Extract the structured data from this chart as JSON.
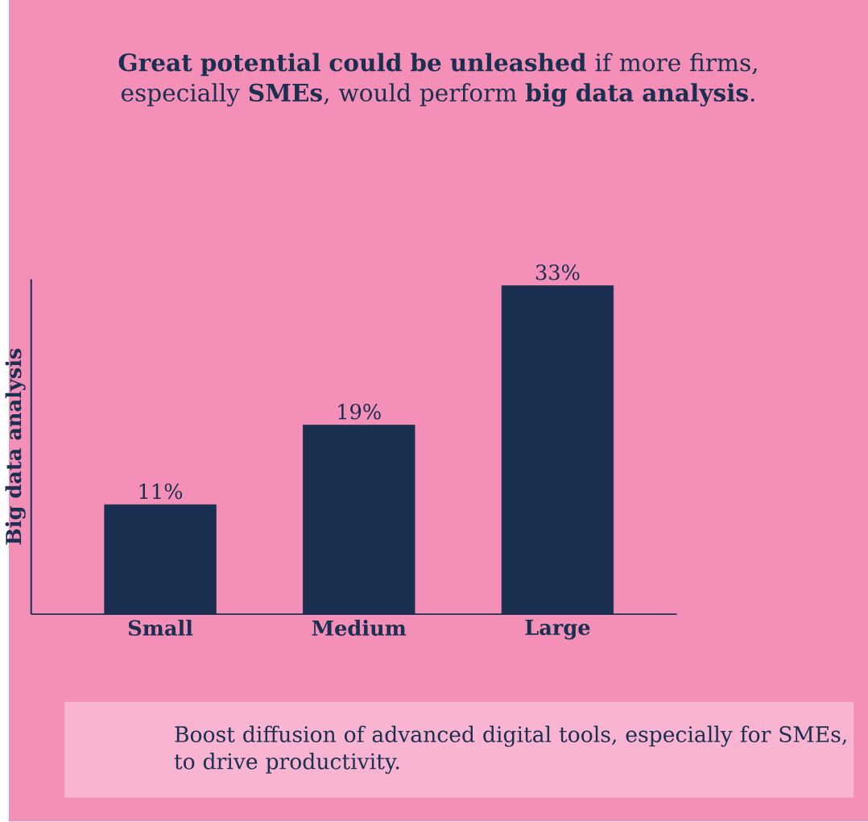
{
  "chart_data": {
    "type": "bar",
    "title": "**Great potential could be unleashed** if more firms, especially **SMEs**, would perform **big data analysis**.",
    "ylabel": "Big data analysis",
    "categories": [
      "Small",
      "Medium",
      "Large"
    ],
    "values": [
      11,
      19,
      33
    ],
    "value_labels": [
      "11%",
      "19%",
      "33%"
    ],
    "color": "#1b3050",
    "annotations": [
      "Boost diffusion of advanced digital tools, especially for SMEs, to drive productivity."
    ]
  }
}
